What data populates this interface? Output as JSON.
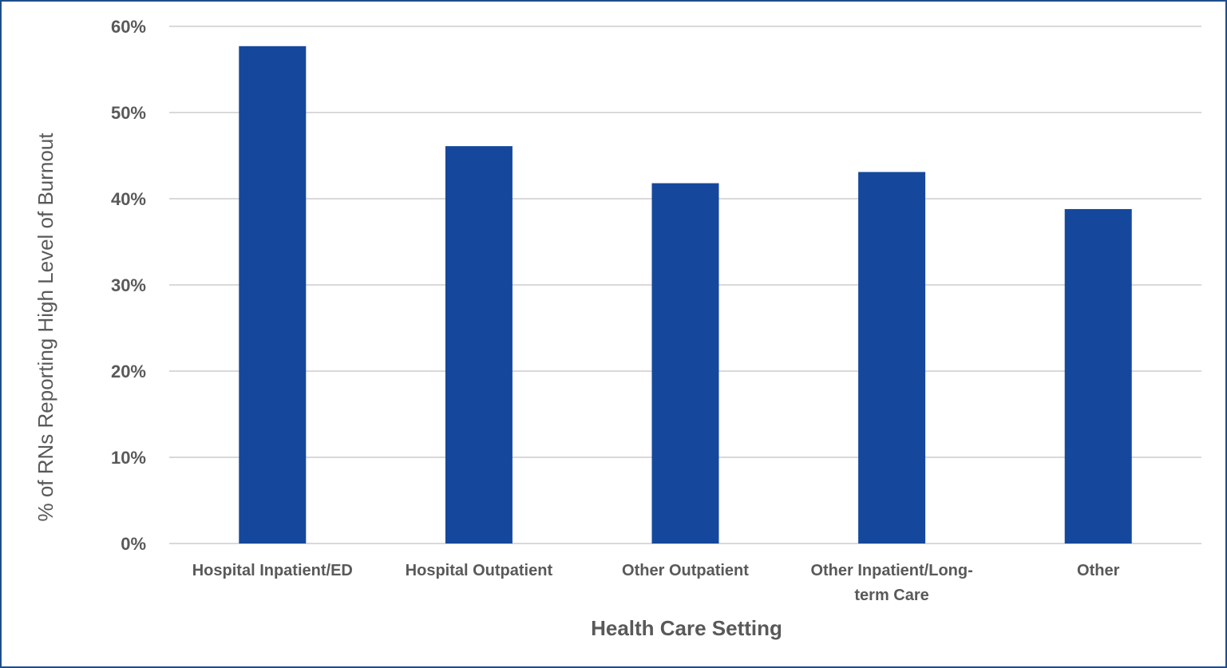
{
  "chart_data": {
    "type": "bar",
    "categories": [
      [
        "Hospital Inpatient/ED"
      ],
      [
        "Hospital Outpatient"
      ],
      [
        "Other Outpatient"
      ],
      [
        "Other Inpatient/Long-",
        "term Care"
      ],
      [
        "Other"
      ]
    ],
    "values": [
      57.7,
      46.1,
      41.8,
      43.1,
      38.8
    ],
    "title": "",
    "xlabel": "Health Care Setting",
    "ylabel": "% of RNs Reporting High Level of Burnout",
    "ylim": [
      0,
      60
    ],
    "yticks": [
      "0%",
      "10%",
      "20%",
      "30%",
      "40%",
      "50%",
      "60%"
    ],
    "grid": true,
    "bar_color": "#15489c",
    "grid_color": "#d9d9d9",
    "border_color": "#1f4e8c"
  }
}
